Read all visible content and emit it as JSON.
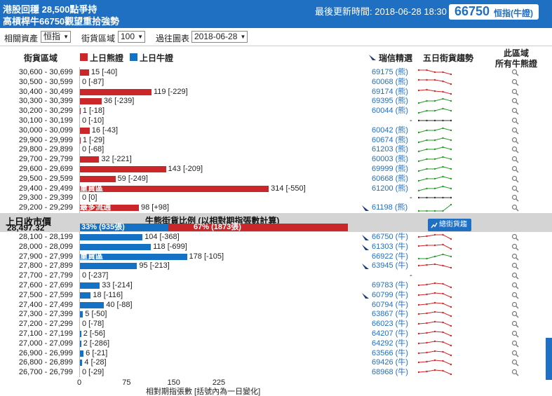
{
  "header": {
    "title_line1": "港股回穩 28,500點爭持",
    "title_line2": "高槓桿牛66750觀望重拾強勢",
    "update_label": "最後更新時間: 2018-06-28 18:30",
    "code": "66750",
    "code_name": "恒指(牛證)"
  },
  "filters": {
    "asset_label": "相關資產",
    "asset_value": "恒指",
    "range_label": "街貨區域",
    "range_value": "100",
    "chart_label": "過往圖表",
    "chart_value": "2018-06-28"
  },
  "columns": {
    "range": "街貨區域",
    "bear_legend": "上日熊證",
    "bull_legend": "上日牛證",
    "ubs_picks": "瑞信精選",
    "trend": "五日街貨趨勢",
    "area_line1": "此區域",
    "area_line2": "所有牛熊證"
  },
  "colors": {
    "bear": "#c9272a",
    "bull": "#1471c4",
    "accent": "#1f6fc2"
  },
  "bear_rows": [
    {
      "range": "30,600 - 30,699",
      "value": 15,
      "label": "15 [-40]",
      "cert": "69175 (熊)",
      "flag": false,
      "trend": [
        3,
        3,
        6,
        6,
        9
      ],
      "trend_color": "red"
    },
    {
      "range": "30,500 - 30,599",
      "value": 0,
      "label": "0 [-87]",
      "cert": "60068 (熊)",
      "flag": false,
      "trend": [
        3,
        3,
        3,
        5,
        9
      ],
      "trend_color": "red"
    },
    {
      "range": "30,400 - 30,499",
      "value": 119,
      "label": "119 [-229]",
      "cert": "69174 (熊)",
      "flag": false,
      "trend": [
        4,
        3,
        5,
        6,
        9
      ],
      "trend_color": "red"
    },
    {
      "range": "30,300 - 30,399",
      "value": 36,
      "label": "36 [-239]",
      "cert": "69395 (熊)",
      "flag": false,
      "trend": [
        9,
        6,
        6,
        3,
        6
      ],
      "trend_color": "green"
    },
    {
      "range": "30,200 - 30,299",
      "value": 1,
      "label": "1 [-18]",
      "cert": "60044 (熊)",
      "flag": false,
      "trend": [
        9,
        6,
        6,
        3,
        6
      ],
      "trend_color": "green"
    },
    {
      "range": "30,100 - 30,199",
      "value": 0,
      "label": "0 [-10]",
      "cert": "-",
      "flag": false,
      "trend": [
        6,
        6,
        6,
        6,
        6
      ],
      "trend_color": "black"
    },
    {
      "range": "30,000 - 30,099",
      "value": 16,
      "label": "16 [-43]",
      "cert": "60042 (熊)",
      "flag": false,
      "trend": [
        9,
        6,
        6,
        3,
        6
      ],
      "trend_color": "green"
    },
    {
      "range": "29,900 - 29,999",
      "value": 1,
      "label": "1 [-29]",
      "cert": "60674 (熊)",
      "flag": false,
      "trend": [
        9,
        6,
        6,
        3,
        6
      ],
      "trend_color": "green"
    },
    {
      "range": "29,800 - 29,899",
      "value": 0,
      "label": "0 [-68]",
      "cert": "61203 (熊)",
      "flag": false,
      "trend": [
        9,
        6,
        6,
        3,
        6
      ],
      "trend_color": "green"
    },
    {
      "range": "29,700 - 29,799",
      "value": 32,
      "label": "32 [-221]",
      "cert": "60003 (熊)",
      "flag": false,
      "trend": [
        9,
        6,
        6,
        3,
        6
      ],
      "trend_color": "green"
    },
    {
      "range": "29,600 - 29,699",
      "value": 143,
      "label": "143 [-209]",
      "cert": "69999 (熊)",
      "flag": false,
      "trend": [
        9,
        6,
        6,
        3,
        6
      ],
      "trend_color": "green"
    },
    {
      "range": "29,500 - 29,599",
      "value": 59,
      "label": "59 [-249]",
      "cert": "60668 (熊)",
      "flag": false,
      "trend": [
        9,
        6,
        6,
        3,
        6
      ],
      "trend_color": "green"
    },
    {
      "range": "29,400 - 29,499",
      "value": 314,
      "label": "314 [-550]",
      "cert": "61200 (熊)",
      "flag": false,
      "overlay": "重貨區",
      "trend": [
        9,
        6,
        6,
        3,
        6
      ],
      "trend_color": "green"
    },
    {
      "range": "29,300 - 29,399",
      "value": 0,
      "label": "0 [0]",
      "cert": "-",
      "flag": false,
      "trend": [
        6,
        6,
        6,
        6,
        6
      ],
      "trend_color": "black"
    },
    {
      "range": "29,200 - 29,299",
      "value": 98,
      "label": "98 [+98]",
      "cert": "61198 (熊)",
      "flag": true,
      "overlay": "最多流通",
      "trend": [
        11,
        11,
        11,
        11,
        2
      ],
      "trend_color": "green"
    }
  ],
  "midband": {
    "close_label": "上日收市價",
    "close_value": "28,497.32",
    "ratio_title": "牛熊街貨比例 (以相對期指張數計算)",
    "bull_ratio": 33,
    "bull_text": "33% (935張)",
    "bear_text": "67% (1873張)",
    "button": "總街貨趨勢"
  },
  "bull_rows": [
    {
      "range": "28,100 - 28,199",
      "value": 104,
      "label": "104 [-368]",
      "cert": "66750 (牛)",
      "flag": true,
      "trend": [
        6,
        5,
        3,
        3,
        9
      ],
      "trend_color": "red"
    },
    {
      "range": "28,000 - 28,099",
      "value": 118,
      "label": "118 [-699]",
      "cert": "61303 (牛)",
      "flag": true,
      "trend": [
        5,
        4,
        4,
        3,
        9
      ],
      "trend_color": "red"
    },
    {
      "range": "27,900 - 27,999",
      "value": 178,
      "label": "178 [-105]",
      "cert": "66922 (牛)",
      "flag": false,
      "overlay": "重貨區",
      "trend": [
        9,
        9,
        6,
        3,
        6
      ],
      "trend_color": "green"
    },
    {
      "range": "27,800 - 27,899",
      "value": 95,
      "label": "95 [-213]",
      "cert": "63945 (牛)",
      "flag": true,
      "trend": [
        6,
        5,
        4,
        6,
        9
      ],
      "trend_color": "red"
    },
    {
      "range": "27,700 - 27,799",
      "value": 0,
      "label": "0 [-237]",
      "cert": "-",
      "flag": false,
      "trend": [],
      "trend_color": "black"
    },
    {
      "range": "27,600 - 27,699",
      "value": 33,
      "label": "33 [-214]",
      "cert": "69783 (牛)",
      "flag": false,
      "trend": [
        6,
        5,
        3,
        4,
        9
      ],
      "trend_color": "red"
    },
    {
      "range": "27,500 - 27,599",
      "value": 18,
      "label": "18 [-116]",
      "cert": "60799 (牛)",
      "flag": true,
      "trend": [
        6,
        5,
        3,
        4,
        9
      ],
      "trend_color": "red"
    },
    {
      "range": "27,400 - 27,499",
      "value": 40,
      "label": "40 [-88]",
      "cert": "60794 (牛)",
      "flag": false,
      "trend": [
        6,
        5,
        3,
        4,
        9
      ],
      "trend_color": "red"
    },
    {
      "range": "27,300 - 27,399",
      "value": 5,
      "label": "5 [-50]",
      "cert": "63867 (牛)",
      "flag": false,
      "trend": [
        6,
        5,
        3,
        4,
        9
      ],
      "trend_color": "red"
    },
    {
      "range": "27,200 - 27,299",
      "value": 0,
      "label": "0 [-78]",
      "cert": "66023 (牛)",
      "flag": false,
      "trend": [
        6,
        5,
        3,
        4,
        9
      ],
      "trend_color": "red"
    },
    {
      "range": "27,100 - 27,199",
      "value": 2,
      "label": "2 [-56]",
      "cert": "64207 (牛)",
      "flag": false,
      "trend": [
        6,
        5,
        3,
        4,
        9
      ],
      "trend_color": "red"
    },
    {
      "range": "27,000 - 27,099",
      "value": 2,
      "label": "2 [-286]",
      "cert": "64292 (牛)",
      "flag": false,
      "trend": [
        6,
        5,
        3,
        4,
        9
      ],
      "trend_color": "red"
    },
    {
      "range": "26,900 - 26,999",
      "value": 6,
      "label": "6 [-21]",
      "cert": "63566 (牛)",
      "flag": false,
      "trend": [
        6,
        5,
        3,
        4,
        9
      ],
      "trend_color": "red"
    },
    {
      "range": "26,800 - 26,899",
      "value": 4,
      "label": "4 [-28]",
      "cert": "69426 (牛)",
      "flag": false,
      "trend": [
        6,
        5,
        3,
        4,
        9
      ],
      "trend_color": "red"
    },
    {
      "range": "26,700 - 26,799",
      "value": 0,
      "label": "0 [-29]",
      "cert": "68968 (牛)",
      "flag": false,
      "trend": [
        6,
        5,
        3,
        4,
        9
      ],
      "trend_color": "red"
    }
  ],
  "axis": {
    "ticks": [
      "0",
      "75",
      "150",
      "225"
    ],
    "tick_values": [
      0,
      75,
      150,
      225
    ],
    "label": "相對期指張數 [括號內為一日變化]"
  }
}
